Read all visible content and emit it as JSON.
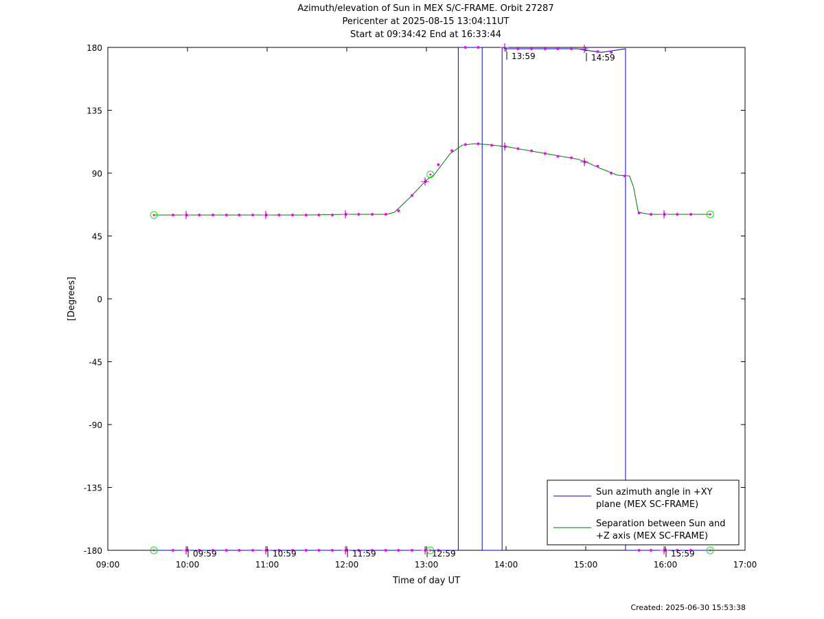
{
  "titles": [
    "Azimuth/elevation of Sun in MEX S/C-FRAME.  Orbit 27287",
    "Pericenter at 2025-08-15 13:04:11UT",
    "Start at 09:34:42 End at 16:33:44"
  ],
  "created": "Created: 2025-06-30 15:53:38",
  "colors": {
    "azimuth": "#0000cc",
    "separation": "#007700",
    "marker": "#ff00ff",
    "circle": "#00ee00"
  },
  "chart_data": {
    "type": "line",
    "xlabel": "Time of day UT",
    "ylabel": "[Degrees]",
    "x_unit": "hours",
    "xlim": [
      9,
      17
    ],
    "ylim": [
      -180,
      180
    ],
    "x_ticks": [
      {
        "value": 9,
        "label": "09:00"
      },
      {
        "value": 10,
        "label": "10:00"
      },
      {
        "value": 11,
        "label": "11:00"
      },
      {
        "value": 12,
        "label": "12:00"
      },
      {
        "value": 13,
        "label": "13:00"
      },
      {
        "value": 14,
        "label": "14:00"
      },
      {
        "value": 15,
        "label": "15:00"
      },
      {
        "value": 16,
        "label": "16:00"
      },
      {
        "value": 17,
        "label": "17:00"
      }
    ],
    "y_ticks": [
      {
        "value": 180,
        "label": "180"
      },
      {
        "value": 135,
        "label": "135"
      },
      {
        "value": 90,
        "label": "90"
      },
      {
        "value": 45,
        "label": "45"
      },
      {
        "value": 0,
        "label": "0"
      },
      {
        "value": -45,
        "label": "-45"
      },
      {
        "value": -90,
        "label": "-90"
      },
      {
        "value": -135,
        "label": "-135"
      },
      {
        "value": -180,
        "label": "-180"
      }
    ],
    "grid": false,
    "legend_position": "bottom-right",
    "series": [
      {
        "name": "Sun azimuth angle in +XY plane (MEX SC-FRAME)",
        "legend_lines": [
          "Sun azimuth angle in +XY",
          "plane (MEX SC-FRAME)"
        ],
        "color": "#0000cc",
        "points": [
          [
            9.578,
            -180
          ],
          [
            12.4,
            -180
          ],
          [
            13.4,
            -180
          ],
          [
            13.4,
            180
          ],
          [
            13.7,
            180
          ],
          [
            13.7,
            -180
          ],
          [
            13.95,
            -180
          ],
          [
            13.95,
            180
          ],
          [
            14.0,
            179
          ],
          [
            14.9,
            179
          ],
          [
            15.0,
            178
          ],
          [
            15.2,
            176.5
          ],
          [
            15.5,
            179
          ],
          [
            15.5,
            -180
          ],
          [
            16.562,
            -180
          ]
        ]
      },
      {
        "name": "Separation between Sun and +Z axis (MEX SC-FRAME)",
        "legend_lines": [
          "Separation between Sun and",
          "+Z axis (MEX SC-FRAME)"
        ],
        "color": "#007700",
        "points": [
          [
            9.578,
            60
          ],
          [
            10.0,
            60
          ],
          [
            11.0,
            60
          ],
          [
            11.5,
            60
          ],
          [
            12.0,
            60.5
          ],
          [
            12.5,
            60.5
          ],
          [
            12.6,
            62
          ],
          [
            12.8,
            73
          ],
          [
            13.0,
            85
          ],
          [
            13.1,
            89
          ],
          [
            13.3,
            104
          ],
          [
            13.45,
            110
          ],
          [
            13.6,
            111
          ],
          [
            13.75,
            110.5
          ],
          [
            14.0,
            109
          ],
          [
            14.3,
            106
          ],
          [
            14.6,
            103
          ],
          [
            14.9,
            100
          ],
          [
            15.0,
            98
          ],
          [
            15.2,
            93
          ],
          [
            15.4,
            88.5
          ],
          [
            15.55,
            88
          ],
          [
            15.6,
            80
          ],
          [
            15.66,
            62
          ],
          [
            15.8,
            60.5
          ],
          [
            16.2,
            60.5
          ],
          [
            16.562,
            60.5
          ]
        ]
      }
    ],
    "marker_points": [
      [
        9.82,
        60
      ],
      [
        9.99,
        60
      ],
      [
        10.15,
        60
      ],
      [
        10.32,
        60
      ],
      [
        10.49,
        60
      ],
      [
        10.65,
        60
      ],
      [
        10.82,
        60
      ],
      [
        10.99,
        60
      ],
      [
        11.15,
        60
      ],
      [
        11.32,
        60
      ],
      [
        11.49,
        60
      ],
      [
        11.65,
        60
      ],
      [
        11.82,
        60
      ],
      [
        11.99,
        60.5
      ],
      [
        12.15,
        60.5
      ],
      [
        12.32,
        60.5
      ],
      [
        12.49,
        60.5
      ],
      [
        12.65,
        63
      ],
      [
        12.82,
        74
      ],
      [
        12.99,
        84
      ],
      [
        13.15,
        96
      ],
      [
        13.32,
        106
      ],
      [
        13.49,
        110.5
      ],
      [
        13.65,
        111
      ],
      [
        13.82,
        110
      ],
      [
        13.99,
        109
      ],
      [
        14.15,
        107.5
      ],
      [
        14.32,
        106
      ],
      [
        14.49,
        104
      ],
      [
        14.65,
        102
      ],
      [
        14.82,
        101
      ],
      [
        14.99,
        98
      ],
      [
        15.15,
        95
      ],
      [
        15.32,
        90
      ],
      [
        15.49,
        88
      ],
      [
        15.67,
        61.5
      ],
      [
        15.82,
        60.5
      ],
      [
        15.99,
        60.5
      ],
      [
        16.15,
        60.5
      ],
      [
        16.32,
        60.5
      ],
      [
        9.82,
        -180
      ],
      [
        9.99,
        -180
      ],
      [
        10.15,
        -180
      ],
      [
        10.32,
        -180
      ],
      [
        10.49,
        -180
      ],
      [
        10.65,
        -180
      ],
      [
        10.82,
        -180
      ],
      [
        10.99,
        -180
      ],
      [
        11.15,
        -180
      ],
      [
        11.32,
        -180
      ],
      [
        11.49,
        -180
      ],
      [
        11.65,
        -180
      ],
      [
        11.82,
        -180
      ],
      [
        11.99,
        -180
      ],
      [
        12.15,
        -180
      ],
      [
        12.32,
        -180
      ],
      [
        12.49,
        -180
      ],
      [
        12.65,
        -180
      ],
      [
        12.82,
        -180
      ],
      [
        12.99,
        -180
      ],
      [
        13.15,
        -180
      ],
      [
        13.49,
        180
      ],
      [
        13.65,
        180
      ],
      [
        14.15,
        179
      ],
      [
        14.32,
        179
      ],
      [
        14.49,
        179
      ],
      [
        14.65,
        179
      ],
      [
        14.82,
        179
      ],
      [
        15.15,
        177
      ],
      [
        15.32,
        176.5
      ],
      [
        15.67,
        -180
      ],
      [
        15.82,
        -180
      ],
      [
        15.99,
        -180
      ],
      [
        16.15,
        -180
      ],
      [
        16.32,
        -180
      ]
    ],
    "hour_marks": [
      {
        "x": 9.983,
        "y_az": -180,
        "y_sep": 60,
        "label": "09:59"
      },
      {
        "x": 10.983,
        "y_az": -180,
        "y_sep": 60,
        "label": "10:59"
      },
      {
        "x": 11.983,
        "y_az": -180,
        "y_sep": 60.5,
        "label": "11:59"
      },
      {
        "x": 12.983,
        "y_az": -180,
        "y_sep": 84,
        "label": "12:59"
      },
      {
        "x": 13.983,
        "y_az": 180,
        "y_sep": 109,
        "label": "13:59"
      },
      {
        "x": 14.983,
        "y_az": 179,
        "y_sep": 98,
        "label": "14:59"
      },
      {
        "x": 15.983,
        "y_az": -180,
        "y_sep": 60.5,
        "label": "15:59"
      }
    ],
    "circle_points": [
      [
        9.578,
        60
      ],
      [
        9.578,
        -180
      ],
      [
        13.05,
        89
      ],
      [
        13.05,
        -180
      ],
      [
        16.562,
        60.5
      ],
      [
        16.562,
        -180
      ]
    ]
  }
}
